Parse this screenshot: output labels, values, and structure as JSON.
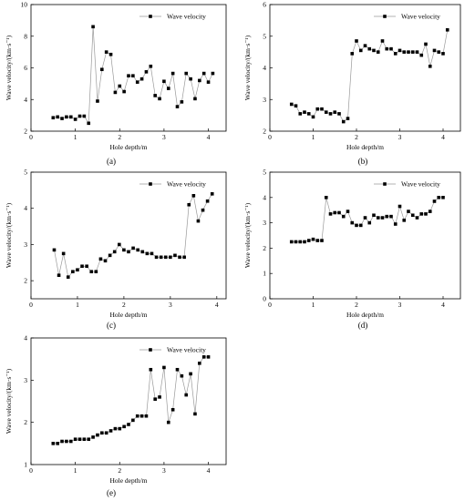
{
  "chart_data": [
    {
      "panel_label": "(a)",
      "type": "line",
      "xlabel": "Hole depth/m",
      "ylabel": "Wave velocity/(km·s⁻¹)",
      "xlim": [
        0,
        4.4
      ],
      "ylim": [
        2,
        10
      ],
      "xticks": [
        0,
        1,
        2,
        3,
        4
      ],
      "yticks": [
        2,
        4,
        6,
        8,
        10
      ],
      "grid": false,
      "legend_position": "top-right",
      "series": [
        {
          "name": "Wave velocity",
          "x": [
            0.5,
            0.6,
            0.7,
            0.8,
            0.9,
            1.0,
            1.1,
            1.2,
            1.3,
            1.4,
            1.5,
            1.6,
            1.7,
            1.8,
            1.9,
            2.0,
            2.1,
            2.2,
            2.3,
            2.4,
            2.5,
            2.6,
            2.7,
            2.8,
            2.9,
            3.0,
            3.1,
            3.2,
            3.3,
            3.4,
            3.5,
            3.6,
            3.7,
            3.8,
            3.9,
            4.0,
            4.1
          ],
          "y": [
            2.85,
            2.9,
            2.8,
            2.9,
            2.9,
            2.75,
            2.95,
            2.95,
            2.5,
            8.6,
            3.9,
            5.9,
            7.0,
            6.85,
            4.45,
            4.85,
            4.5,
            5.5,
            5.5,
            5.1,
            5.3,
            5.75,
            6.1,
            4.25,
            4.05,
            5.15,
            4.7,
            5.65,
            3.55,
            3.85,
            5.65,
            5.3,
            4.05,
            5.2,
            5.65,
            5.1,
            5.65
          ]
        }
      ]
    },
    {
      "panel_label": "(b)",
      "type": "line",
      "xlabel": "Hole depth/m",
      "ylabel": "Wave velocity/(km·s⁻¹)",
      "xlim": [
        0,
        4.4
      ],
      "ylim": [
        2,
        6
      ],
      "xticks": [
        0,
        1,
        2,
        3,
        4
      ],
      "yticks": [
        2,
        3,
        4,
        5,
        6
      ],
      "grid": false,
      "legend_position": "top-right",
      "series": [
        {
          "name": "Wave velocity",
          "x": [
            0.5,
            0.6,
            0.7,
            0.8,
            0.9,
            1.0,
            1.1,
            1.2,
            1.3,
            1.4,
            1.5,
            1.6,
            1.7,
            1.8,
            1.9,
            2.0,
            2.1,
            2.2,
            2.3,
            2.4,
            2.5,
            2.6,
            2.7,
            2.8,
            2.9,
            3.0,
            3.1,
            3.2,
            3.3,
            3.4,
            3.5,
            3.6,
            3.7,
            3.8,
            3.9,
            4.0,
            4.1
          ],
          "y": [
            2.85,
            2.8,
            2.55,
            2.6,
            2.55,
            2.45,
            2.7,
            2.7,
            2.6,
            2.55,
            2.6,
            2.55,
            2.3,
            2.4,
            4.45,
            4.85,
            4.55,
            4.7,
            4.6,
            4.55,
            4.5,
            4.85,
            4.6,
            4.6,
            4.45,
            4.55,
            4.5,
            4.5,
            4.5,
            4.5,
            4.4,
            4.75,
            4.05,
            4.55,
            4.5,
            4.45,
            5.2
          ]
        }
      ]
    },
    {
      "panel_label": "(c)",
      "type": "line",
      "xlabel": "Hole depth/m",
      "ylabel": "Wave velocity/(km·s⁻¹)",
      "xlim": [
        0,
        4.2
      ],
      "ylim": [
        1.5,
        5
      ],
      "xticks": [
        0,
        1,
        2,
        3,
        4
      ],
      "yticks": [
        2,
        3,
        4,
        5
      ],
      "grid": false,
      "legend_position": "top-right",
      "series": [
        {
          "name": "Wave velocity",
          "x": [
            0.5,
            0.6,
            0.7,
            0.8,
            0.9,
            1.0,
            1.1,
            1.2,
            1.3,
            1.4,
            1.5,
            1.6,
            1.7,
            1.8,
            1.9,
            2.0,
            2.1,
            2.2,
            2.3,
            2.4,
            2.5,
            2.6,
            2.7,
            2.8,
            2.9,
            3.0,
            3.1,
            3.2,
            3.3,
            3.4,
            3.5,
            3.6,
            3.7,
            3.8,
            3.9
          ],
          "y": [
            2.85,
            2.15,
            2.75,
            2.1,
            2.25,
            2.3,
            2.4,
            2.4,
            2.25,
            2.25,
            2.6,
            2.55,
            2.7,
            2.8,
            3.0,
            2.85,
            2.8,
            2.9,
            2.85,
            2.8,
            2.75,
            2.75,
            2.65,
            2.65,
            2.65,
            2.65,
            2.7,
            2.65,
            2.65,
            4.1,
            4.35,
            3.65,
            3.95,
            4.2,
            4.4
          ]
        }
      ]
    },
    {
      "panel_label": "(d)",
      "type": "line",
      "xlabel": "Hole depth/m",
      "ylabel": "Wave velocity/(km·s⁻¹)",
      "xlim": [
        0,
        4.4
      ],
      "ylim": [
        0,
        5
      ],
      "xticks": [
        0,
        1,
        2,
        3,
        4
      ],
      "yticks": [
        0,
        1,
        2,
        3,
        4,
        5
      ],
      "grid": false,
      "legend_position": "top-right",
      "series": [
        {
          "name": "Wave velocity",
          "x": [
            0.5,
            0.6,
            0.7,
            0.8,
            0.9,
            1.0,
            1.1,
            1.2,
            1.3,
            1.4,
            1.5,
            1.6,
            1.7,
            1.8,
            1.9,
            2.0,
            2.1,
            2.2,
            2.3,
            2.4,
            2.5,
            2.6,
            2.7,
            2.8,
            2.9,
            3.0,
            3.1,
            3.2,
            3.3,
            3.4,
            3.5,
            3.6,
            3.7,
            3.8,
            3.9,
            4.0
          ],
          "y": [
            2.25,
            2.25,
            2.25,
            2.25,
            2.3,
            2.35,
            2.3,
            2.3,
            4.0,
            3.35,
            3.4,
            3.4,
            3.25,
            3.45,
            3.0,
            2.9,
            2.9,
            3.2,
            3.0,
            3.3,
            3.2,
            3.2,
            3.25,
            3.25,
            2.95,
            3.65,
            3.1,
            3.45,
            3.3,
            3.2,
            3.35,
            3.35,
            3.45,
            3.85,
            4.0,
            4.0
          ]
        }
      ]
    },
    {
      "panel_label": "(e)",
      "type": "line",
      "xlabel": "Hole depth/m",
      "ylabel": "Wave velocity/(km·s⁻¹)",
      "xlim": [
        0,
        4.4
      ],
      "ylim": [
        1,
        4
      ],
      "xticks": [
        0,
        1,
        2,
        3,
        4
      ],
      "yticks": [
        1,
        2,
        3,
        4
      ],
      "grid": false,
      "legend_position": "top-right",
      "series": [
        {
          "name": "Wave velocity",
          "x": [
            0.5,
            0.6,
            0.7,
            0.8,
            0.9,
            1.0,
            1.1,
            1.2,
            1.3,
            1.4,
            1.5,
            1.6,
            1.7,
            1.8,
            1.9,
            2.0,
            2.1,
            2.2,
            2.3,
            2.4,
            2.5,
            2.6,
            2.7,
            2.8,
            2.9,
            3.0,
            3.1,
            3.2,
            3.3,
            3.4,
            3.5,
            3.6,
            3.7,
            3.8,
            3.9,
            4.0
          ],
          "y": [
            1.5,
            1.5,
            1.55,
            1.55,
            1.55,
            1.6,
            1.6,
            1.6,
            1.6,
            1.65,
            1.7,
            1.75,
            1.75,
            1.8,
            1.85,
            1.85,
            1.9,
            1.95,
            2.05,
            2.15,
            2.15,
            2.15,
            3.25,
            2.55,
            2.6,
            3.3,
            2.0,
            2.3,
            3.25,
            3.1,
            2.65,
            3.15,
            2.2,
            3.4,
            3.55,
            3.55
          ]
        }
      ]
    }
  ],
  "style": {
    "line_color": "#9a9a9a",
    "marker_color": "#000000",
    "axis_color": "#000000"
  }
}
